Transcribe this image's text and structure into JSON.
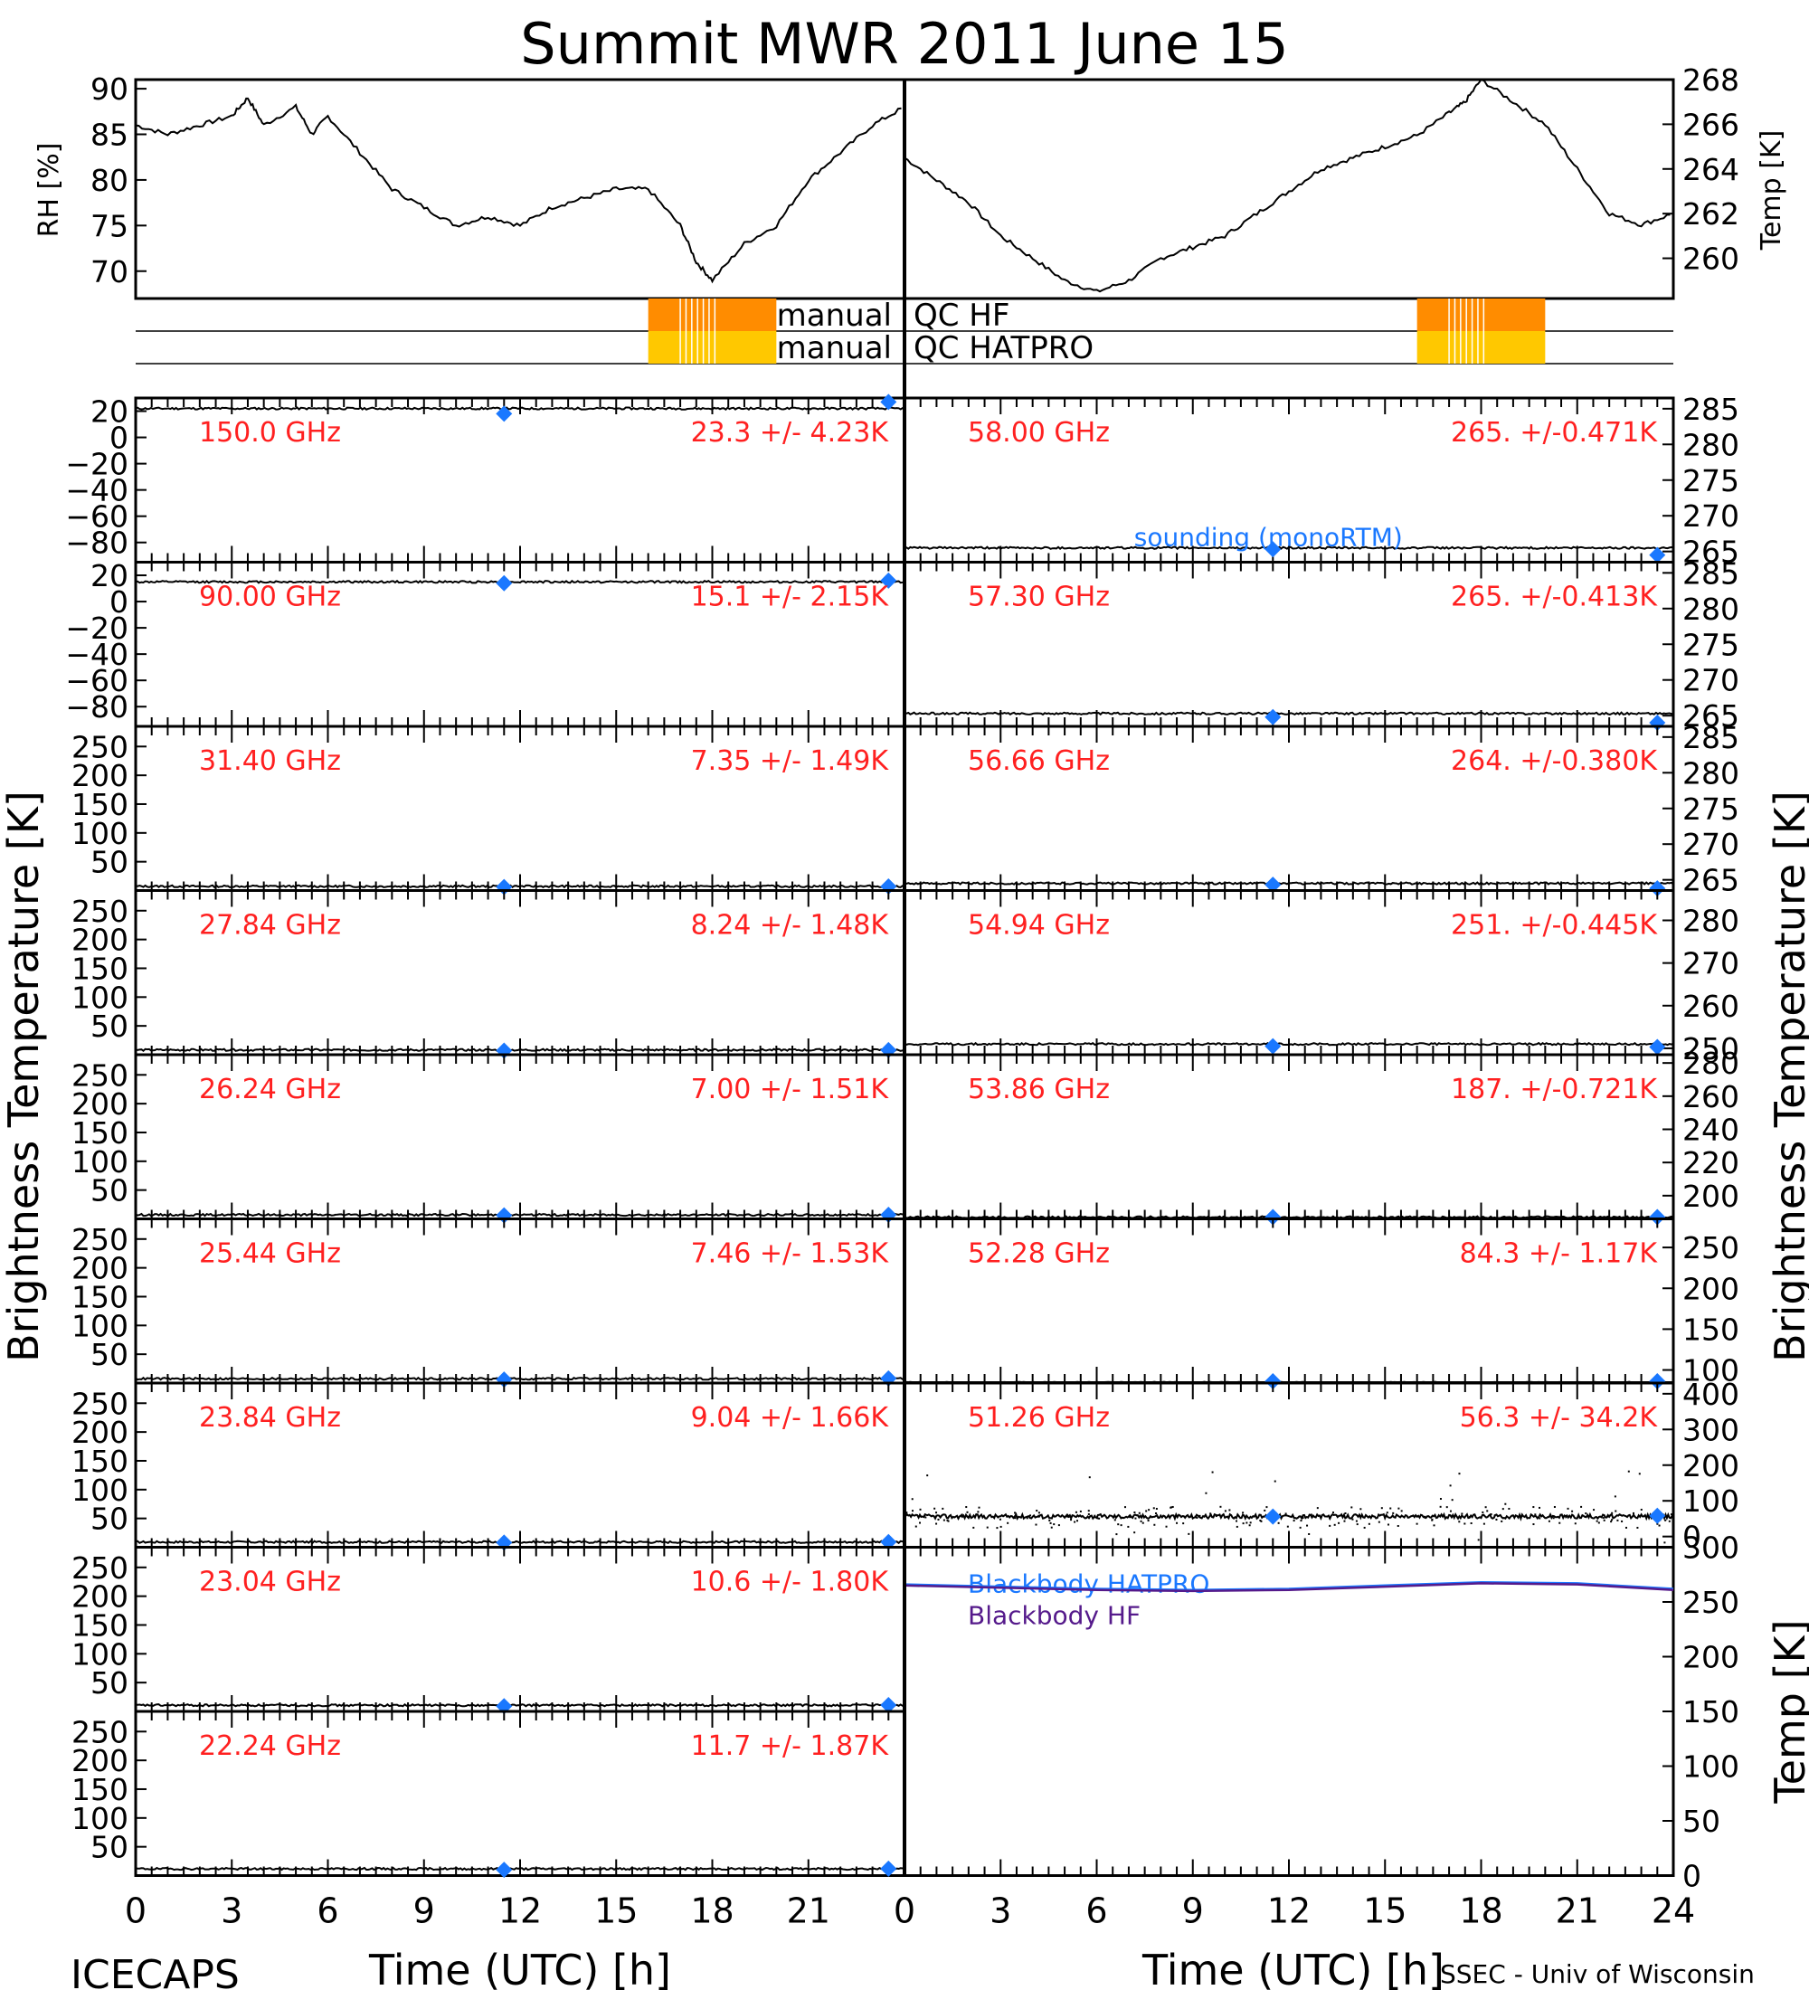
{
  "title": "Summit MWR 2011 June 15",
  "footer_left": "ICECAPS",
  "footer_right": "SSEC - Univ of Wisconsin",
  "x_axis_label": "Time (UTC) [h]",
  "x_ticks": [
    "0",
    "3",
    "6",
    "9",
    "12",
    "15",
    "18",
    "21",
    "0",
    "3",
    "6",
    "9",
    "12",
    "15",
    "18",
    "21",
    "24"
  ],
  "left_ylabel": "Brightness Temperature [K]",
  "right_ylabel": "Brightness Temperature [K]",
  "colors": {
    "line": "#000000",
    "label": "#ff2020",
    "sounding": "#1a78ff",
    "qc_hf": "#ff8c00",
    "qc_hatpro": "#ffc800",
    "bb_hf": "#551a8b"
  },
  "chart_data": [
    {
      "type": "line",
      "name": "rh",
      "ylabel": "RH [%]",
      "xlim": [
        0,
        24
      ],
      "ylim": [
        67,
        91
      ],
      "yticks": [
        "70",
        "75",
        "80",
        "85",
        "90"
      ],
      "x": [
        0,
        1,
        2,
        3,
        3.5,
        4,
        5,
        5.5,
        6,
        7,
        8,
        9,
        10,
        11,
        12,
        13,
        14,
        15,
        16,
        17,
        17.5,
        18,
        19,
        20,
        21,
        22,
        23,
        24
      ],
      "y": [
        86,
        85,
        86,
        87,
        89,
        86,
        88,
        85,
        87,
        83,
        79,
        77,
        75,
        76,
        75,
        77,
        78,
        79,
        79,
        75,
        71,
        69,
        73,
        75,
        80,
        83,
        86,
        88
      ]
    },
    {
      "type": "line",
      "name": "temp",
      "ylabel": "Temp [K]",
      "xlim": [
        0,
        24
      ],
      "ylim": [
        258.2,
        268
      ],
      "yticks": [
        "260",
        "262",
        "264",
        "266",
        "268"
      ],
      "x": [
        0,
        1,
        2,
        3,
        4,
        5,
        6,
        7,
        8,
        9,
        10,
        11,
        12,
        13,
        14,
        15,
        16,
        17,
        17.5,
        18,
        19,
        20,
        21,
        22,
        23,
        24
      ],
      "y": [
        264.5,
        263.5,
        262.5,
        261,
        260,
        259,
        258.5,
        259,
        260,
        260.5,
        261,
        262,
        263,
        264,
        264.5,
        265,
        265.5,
        266.5,
        267,
        268,
        267,
        266,
        264,
        262,
        261.5,
        262
      ]
    },
    {
      "type": "table",
      "name": "manual_qc",
      "rows": [
        {
          "label": "manual",
          "sublabel": "QC HF",
          "segments": [
            [
              16,
              20
            ]
          ]
        },
        {
          "label": "manual",
          "sublabel": "QC HATPRO",
          "segments": [
            [
              16,
              20
            ]
          ]
        }
      ]
    },
    {
      "type": "line",
      "name": "tb_150",
      "freq": "150.0 GHz",
      "stat": "23.3 +/- 4.23K",
      "ylim": [
        -95,
        30
      ],
      "yticks": [
        "20",
        "0",
        "−20",
        "−40",
        "−60",
        "−80"
      ],
      "level": 22,
      "sounding": [
        {
          "x": 11.5,
          "y": 18
        },
        {
          "x": 23.5,
          "y": 27
        }
      ]
    },
    {
      "type": "line",
      "name": "tb_090",
      "freq": "90.00 GHz",
      "stat": "15.1 +/- 2.15K",
      "ylim": [
        -95,
        30
      ],
      "yticks": [
        "20",
        "0",
        "−20",
        "−40",
        "−60",
        "−80"
      ],
      "level": 15,
      "sounding": [
        {
          "x": 11.5,
          "y": 14
        },
        {
          "x": 23.5,
          "y": 16
        }
      ]
    },
    {
      "type": "line",
      "name": "tb_3140",
      "freq": "31.40 GHz",
      "stat": "7.35 +/- 1.49K",
      "ylim": [
        0,
        285
      ],
      "yticks": [
        "250",
        "200",
        "150",
        "100",
        "50"
      ],
      "level": 7.35,
      "sounding": [
        {
          "x": 11.5,
          "y": 6
        },
        {
          "x": 23.5,
          "y": 7
        }
      ]
    },
    {
      "type": "line",
      "name": "tb_2784",
      "freq": "27.84 GHz",
      "stat": "8.24 +/- 1.48K",
      "ylim": [
        0,
        285
      ],
      "yticks": [
        "250",
        "200",
        "150",
        "100",
        "50"
      ],
      "level": 8.24,
      "sounding": [
        {
          "x": 11.5,
          "y": 7
        },
        {
          "x": 23.5,
          "y": 8
        }
      ]
    },
    {
      "type": "line",
      "name": "tb_2624",
      "freq": "26.24 GHz",
      "stat": "7.00 +/- 1.51K",
      "ylim": [
        0,
        285
      ],
      "yticks": [
        "250",
        "200",
        "150",
        "100",
        "50"
      ],
      "level": 7.0,
      "sounding": [
        {
          "x": 11.5,
          "y": 6
        },
        {
          "x": 23.5,
          "y": 7
        }
      ]
    },
    {
      "type": "line",
      "name": "tb_2544",
      "freq": "25.44 GHz",
      "stat": "7.46 +/- 1.53K",
      "ylim": [
        0,
        285
      ],
      "yticks": [
        "250",
        "200",
        "150",
        "100",
        "50"
      ],
      "level": 7.46,
      "sounding": [
        {
          "x": 11.5,
          "y": 6
        },
        {
          "x": 23.5,
          "y": 8
        }
      ]
    },
    {
      "type": "line",
      "name": "tb_2384",
      "freq": "23.84 GHz",
      "stat": "9.04 +/- 1.66K",
      "ylim": [
        0,
        285
      ],
      "yticks": [
        "250",
        "200",
        "150",
        "100",
        "50"
      ],
      "level": 9.04,
      "sounding": [
        {
          "x": 11.5,
          "y": 8
        },
        {
          "x": 23.5,
          "y": 9
        }
      ]
    },
    {
      "type": "line",
      "name": "tb_2304",
      "freq": "23.04 GHz",
      "stat": "10.6 +/- 1.80K",
      "ylim": [
        0,
        285
      ],
      "yticks": [
        "250",
        "200",
        "150",
        "100",
        "50"
      ],
      "level": 10.6,
      "sounding": [
        {
          "x": 11.5,
          "y": 9
        },
        {
          "x": 23.5,
          "y": 11
        }
      ]
    },
    {
      "type": "line",
      "name": "tb_2224",
      "freq": "22.24 GHz",
      "stat": "11.7 +/- 1.87K",
      "ylim": [
        0,
        285
      ],
      "yticks": [
        "250",
        "200",
        "150",
        "100",
        "50"
      ],
      "level": 11.7,
      "sounding": [
        {
          "x": 11.5,
          "y": 10
        },
        {
          "x": 23.5,
          "y": 12
        }
      ]
    },
    {
      "type": "line",
      "name": "tb_5800",
      "freq": "58.00 GHz",
      "stat": "265. +/-0.471K",
      "ylim": [
        263.5,
        286.5
      ],
      "yticks": [
        "285",
        "280",
        "275",
        "270",
        "265"
      ],
      "level": 265.5,
      "sounding": [
        {
          "x": 11.5,
          "y": 265.3
        },
        {
          "x": 23.5,
          "y": 264.5
        }
      ],
      "legend": "sounding (monoRTM)"
    },
    {
      "type": "line",
      "name": "tb_5730",
      "freq": "57.30 GHz",
      "stat": "265. +/-0.413K",
      "ylim": [
        263.5,
        286.5
      ],
      "yticks": [
        "285",
        "280",
        "275",
        "270",
        "265"
      ],
      "level": 265.3,
      "sounding": [
        {
          "x": 11.5,
          "y": 264.8
        },
        {
          "x": 23.5,
          "y": 264
        }
      ]
    },
    {
      "type": "line",
      "name": "tb_5666",
      "freq": "56.66 GHz",
      "stat": "264. +/-0.380K",
      "ylim": [
        263.5,
        286.5
      ],
      "yticks": [
        "285",
        "280",
        "275",
        "270",
        "265"
      ],
      "level": 264.5,
      "sounding": [
        {
          "x": 11.5,
          "y": 264.3
        },
        {
          "x": 23.5,
          "y": 263.8
        }
      ]
    },
    {
      "type": "line",
      "name": "tb_5494",
      "freq": "54.94 GHz",
      "stat": "251. +/-0.445K",
      "ylim": [
        248.5,
        287
      ],
      "yticks": [
        "280",
        "270",
        "260",
        "250"
      ],
      "level": 251,
      "sounding": [
        {
          "x": 11.5,
          "y": 250.5
        },
        {
          "x": 23.5,
          "y": 250.3
        }
      ]
    },
    {
      "type": "line",
      "name": "tb_5386",
      "freq": "53.86 GHz",
      "stat": "187. +/-0.721K",
      "ylim": [
        186,
        285
      ],
      "yticks": [
        "280",
        "260",
        "240",
        "220",
        "200"
      ],
      "level": 187,
      "sounding": [
        {
          "x": 11.5,
          "y": 187
        },
        {
          "x": 23.5,
          "y": 187
        }
      ]
    },
    {
      "type": "line",
      "name": "tb_5228",
      "freq": "52.28 GHz",
      "stat": "84.3 +/- 1.17K",
      "ylim": [
        84,
        285
      ],
      "yticks": [
        "250",
        "200",
        "150",
        "100"
      ],
      "level": 84.3,
      "sounding": [
        {
          "x": 11.5,
          "y": 84.5
        },
        {
          "x": 23.5,
          "y": 84.8
        }
      ]
    },
    {
      "type": "scatter",
      "name": "tb_5126",
      "freq": "51.26 GHz",
      "stat": "56.3 +/- 34.2K",
      "ylim": [
        -30,
        430
      ],
      "yticks": [
        "400",
        "300",
        "200",
        "100",
        "0"
      ],
      "level": 56.3,
      "sounding": [
        {
          "x": 11.5,
          "y": 56
        },
        {
          "x": 23.5,
          "y": 58
        }
      ]
    },
    {
      "type": "line",
      "name": "blackbody",
      "ylabel": "Temp [K]",
      "ylim": [
        0,
        300
      ],
      "yticks": [
        "300",
        "250",
        "200",
        "150",
        "100",
        "50",
        "0"
      ],
      "series": [
        {
          "name": "Blackbody HATPRO",
          "x": [
            0,
            3,
            6,
            9,
            12,
            15,
            18,
            21,
            24
          ],
          "y": [
            266,
            264,
            262,
            261,
            262,
            265,
            268,
            267,
            262
          ]
        },
        {
          "name": "Blackbody HF",
          "x": [
            0,
            3,
            6,
            9,
            12,
            15,
            18,
            21,
            24
          ],
          "y": [
            265,
            263,
            261,
            260,
            261,
            264,
            267,
            266,
            261
          ]
        }
      ]
    }
  ]
}
